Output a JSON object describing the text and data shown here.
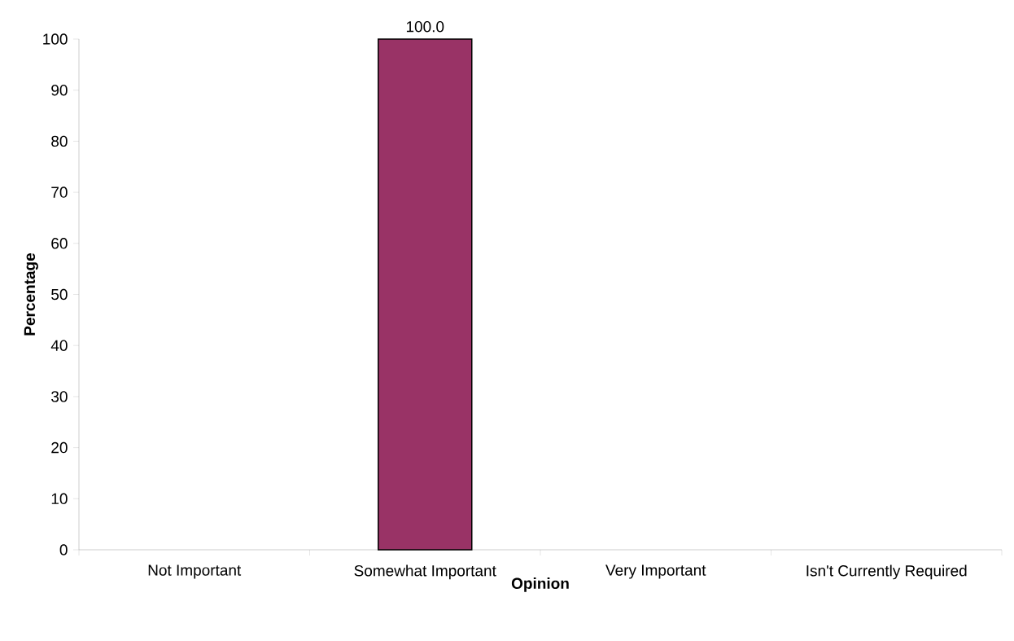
{
  "chart_data": {
    "type": "bar",
    "xlabel": "Opinion",
    "ylabel": "Percentage",
    "categories": [
      "Not Important",
      "Somewhat Important",
      "Very Important",
      "Isn't Currently Required"
    ],
    "values": [
      0,
      100,
      0,
      0
    ],
    "value_labels": [
      null,
      "100.0",
      null,
      null
    ],
    "color": "#993366",
    "ylim": [
      0,
      100
    ],
    "yticks": [
      0,
      10,
      20,
      30,
      40,
      50,
      60,
      70,
      80,
      90,
      100
    ]
  }
}
